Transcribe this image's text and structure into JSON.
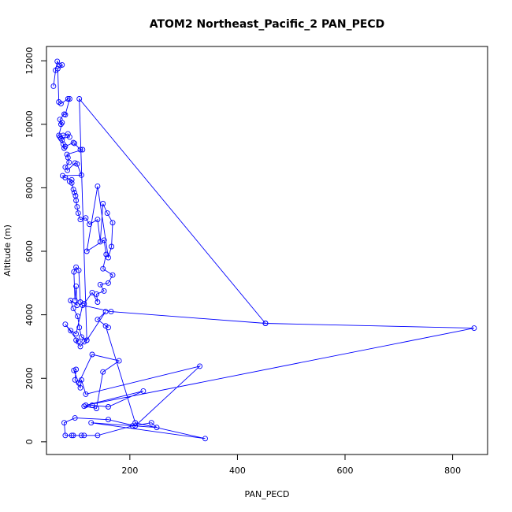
{
  "chart_data": {
    "type": "line",
    "title": "ATOM2 Northeast_Pacific_2 PAN_PECD",
    "xlabel": "PAN_PECD",
    "ylabel": "Altitude (m)",
    "xlim": [
      45,
      865
    ],
    "ylim": [
      -400,
      12450
    ],
    "xticks": [
      200,
      400,
      600,
      800
    ],
    "yticks": [
      0,
      2000,
      4000,
      6000,
      8000,
      10000,
      12000
    ],
    "grid": false,
    "markers": "open-circle",
    "line_color": "#0000ff",
    "series": [
      {
        "points": [
          [
            58,
            11200
          ],
          [
            62,
            11700
          ],
          [
            65,
            11980
          ],
          [
            70,
            11850
          ],
          [
            74,
            11870
          ],
          [
            66,
            11750
          ],
          [
            68,
            10700
          ],
          [
            72,
            10650
          ],
          [
            85,
            10800
          ],
          [
            88,
            10800
          ],
          [
            80,
            10300
          ],
          [
            78,
            10320
          ],
          [
            70,
            10150
          ],
          [
            72,
            10000
          ],
          [
            74,
            10050
          ],
          [
            68,
            9650
          ],
          [
            70,
            9600
          ],
          [
            76,
            9650
          ],
          [
            85,
            9700
          ],
          [
            88,
            9600
          ],
          [
            72,
            9550
          ],
          [
            74,
            9500
          ],
          [
            76,
            9380
          ],
          [
            78,
            9250
          ],
          [
            80,
            9300
          ],
          [
            95,
            9420
          ],
          [
            97,
            9400
          ],
          [
            108,
            9200
          ],
          [
            112,
            9200
          ],
          [
            83,
            9050
          ],
          [
            85,
            8950
          ],
          [
            87,
            8800
          ],
          [
            80,
            8650
          ],
          [
            84,
            8550
          ],
          [
            98,
            8780
          ],
          [
            102,
            8750
          ],
          [
            110,
            8400
          ],
          [
            75,
            8380
          ],
          [
            80,
            8320
          ],
          [
            92,
            8250
          ],
          [
            88,
            8200
          ],
          [
            92,
            8150
          ],
          [
            95,
            7950
          ],
          [
            97,
            7850
          ],
          [
            99,
            7750
          ],
          [
            100,
            7600
          ],
          [
            102,
            7400
          ],
          [
            104,
            7200
          ],
          [
            108,
            7000
          ],
          [
            118,
            7050
          ],
          [
            125,
            6850
          ],
          [
            140,
            7000
          ],
          [
            145,
            6300
          ],
          [
            150,
            7500
          ],
          [
            158,
            7200
          ],
          [
            168,
            6900
          ],
          [
            166,
            6150
          ],
          [
            160,
            5800
          ],
          [
            140,
            8050
          ],
          [
            120,
            6000
          ],
          [
            152,
            6350
          ],
          [
            156,
            5900
          ],
          [
            150,
            5450
          ],
          [
            168,
            5250
          ],
          [
            160,
            5000
          ],
          [
            145,
            4950
          ],
          [
            152,
            4750
          ],
          [
            138,
            4650
          ],
          [
            140,
            4400
          ],
          [
            130,
            4700
          ],
          [
            115,
            4350
          ],
          [
            108,
            4400
          ],
          [
            105,
            5400
          ],
          [
            100,
            5500
          ],
          [
            96,
            5350
          ],
          [
            98,
            4450
          ],
          [
            100,
            4900
          ],
          [
            102,
            4300
          ],
          [
            90,
            4450
          ],
          [
            95,
            4200
          ],
          [
            103,
            3950
          ],
          [
            106,
            3600
          ],
          [
            110,
            3300
          ],
          [
            120,
            3200
          ],
          [
            115,
            3150
          ],
          [
            108,
            3000
          ],
          [
            100,
            3200
          ],
          [
            104,
            3150
          ],
          [
            80,
            3700
          ],
          [
            90,
            3500
          ],
          [
            100,
            3400
          ],
          [
            112,
            4300
          ],
          [
            165,
            4100
          ],
          [
            452,
            3730
          ],
          [
            840,
            3580
          ],
          [
            118,
            1150
          ],
          [
            225,
            1600
          ],
          [
            160,
            1100
          ],
          [
            130,
            1150
          ],
          [
            115,
            1120
          ],
          [
            138,
            1050
          ],
          [
            150,
            2200
          ],
          [
            180,
            2550
          ],
          [
            130,
            2750
          ],
          [
            105,
            1850
          ],
          [
            96,
            2250
          ],
          [
            100,
            2280
          ],
          [
            98,
            1950
          ],
          [
            108,
            1700
          ],
          [
            110,
            1950
          ],
          [
            118,
            1500
          ],
          [
            330,
            2380
          ],
          [
            210,
            500
          ],
          [
            160,
            700
          ],
          [
            98,
            750
          ],
          [
            78,
            600
          ],
          [
            80,
            200
          ],
          [
            92,
            200
          ],
          [
            95,
            200
          ],
          [
            110,
            200
          ],
          [
            115,
            200
          ],
          [
            140,
            200
          ],
          [
            205,
            500
          ],
          [
            240,
            600
          ],
          [
            250,
            450
          ],
          [
            128,
            600
          ],
          [
            340,
            100
          ],
          [
            210,
            600
          ],
          [
            155,
            3650
          ],
          [
            160,
            3600
          ],
          [
            140,
            3850
          ],
          [
            155,
            4100
          ],
          [
            120,
            3200
          ],
          [
            106,
            10800
          ],
          [
            452,
            3730
          ]
        ]
      }
    ]
  }
}
